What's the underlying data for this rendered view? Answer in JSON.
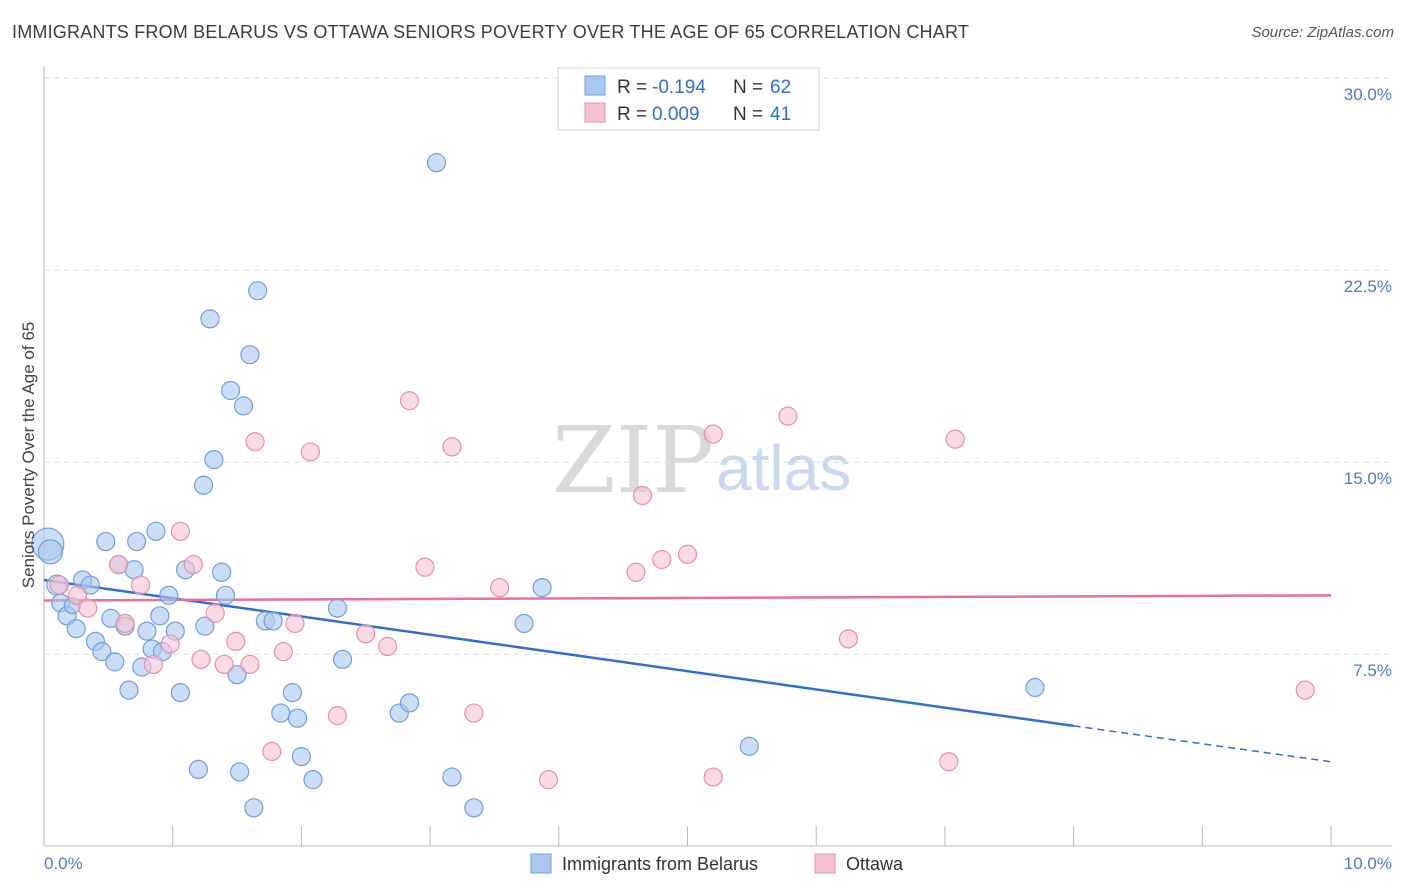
{
  "header": {
    "title": "IMMIGRANTS FROM BELARUS VS OTTAWA SENIORS POVERTY OVER THE AGE OF 65 CORRELATION CHART",
    "source": "Source: ZipAtlas.com"
  },
  "watermark": {
    "zip": "ZIP",
    "atlas": "atlas"
  },
  "colors": {
    "blue_fill": "#aac8ee",
    "blue_stroke": "#6d9fdc",
    "blue_line": "#2e6fd1",
    "pink_fill": "#f6c2d2",
    "pink_stroke": "#e690ac",
    "pink_line": "#e8709a",
    "grid": "#dddddd",
    "tick_text": "#4a7cc9"
  },
  "legend": {
    "rows": [
      {
        "r_label": "R = ",
        "r_value": "-0.194",
        "n_label": "N = ",
        "n_value": "62"
      },
      {
        "r_label": "R = ",
        "r_value": "0.009",
        "n_label": "N = ",
        "n_value": "41"
      }
    ]
  },
  "chart_data": {
    "type": "scatter",
    "title": "IMMIGRANTS FROM BELARUS VS OTTAWA SENIORS POVERTY OVER THE AGE OF 65 CORRELATION CHART",
    "xlabel": "",
    "ylabel": "Seniors Poverty Over the Age of 65",
    "xlim": [
      0,
      10
    ],
    "ylim": [
      0,
      31
    ],
    "x_tick_labels": [
      "0.0%",
      "10.0%"
    ],
    "y_ticks": [
      7.5,
      15.0,
      22.5,
      30.0
    ],
    "y_tick_labels": [
      "7.5%",
      "15.0%",
      "22.5%",
      "30.0%"
    ],
    "series": [
      {
        "name": "Immigrants from Belarus",
        "color": "blue",
        "trend": {
          "x0": 0.0,
          "y0": 10.4,
          "x1": 8.0,
          "y1": 4.7,
          "dash_to_x": 10.0,
          "dash_to_y": 3.3
        },
        "points": [
          [
            0.03,
            11.8,
            16
          ],
          [
            0.05,
            11.5,
            12
          ],
          [
            0.1,
            10.2,
            10
          ],
          [
            0.13,
            9.5,
            9
          ],
          [
            0.18,
            9.0,
            9
          ],
          [
            0.22,
            9.4,
            8
          ],
          [
            0.25,
            8.5,
            9
          ],
          [
            0.3,
            10.4,
            9
          ],
          [
            0.36,
            10.2,
            9
          ],
          [
            0.4,
            8.0,
            9
          ],
          [
            0.45,
            7.6,
            9
          ],
          [
            0.48,
            11.9,
            9
          ],
          [
            0.52,
            8.9,
            9
          ],
          [
            0.55,
            7.2,
            9
          ],
          [
            0.58,
            11.0,
            9
          ],
          [
            0.63,
            8.6,
            9
          ],
          [
            0.66,
            6.1,
            9
          ],
          [
            0.7,
            10.8,
            9
          ],
          [
            0.72,
            11.9,
            9
          ],
          [
            0.76,
            7.0,
            9
          ],
          [
            0.8,
            8.4,
            9
          ],
          [
            0.84,
            7.7,
            9
          ],
          [
            0.87,
            12.3,
            9
          ],
          [
            0.9,
            9.0,
            9
          ],
          [
            0.92,
            7.6,
            9
          ],
          [
            0.97,
            9.8,
            9
          ],
          [
            1.02,
            8.4,
            9
          ],
          [
            1.06,
            6.0,
            9
          ],
          [
            1.1,
            10.8,
            9
          ],
          [
            1.2,
            3.0,
            9
          ],
          [
            1.24,
            14.1,
            9
          ],
          [
            1.25,
            8.6,
            9
          ],
          [
            1.29,
            20.6,
            9
          ],
          [
            1.32,
            15.1,
            9
          ],
          [
            1.38,
            10.7,
            9
          ],
          [
            1.41,
            9.8,
            9
          ],
          [
            1.45,
            17.8,
            9
          ],
          [
            1.5,
            6.7,
            9
          ],
          [
            1.52,
            2.9,
            9
          ],
          [
            1.55,
            17.2,
            9
          ],
          [
            1.6,
            19.2,
            9
          ],
          [
            1.63,
            1.5,
            9
          ],
          [
            1.66,
            21.7,
            9
          ],
          [
            1.72,
            8.8,
            9
          ],
          [
            1.78,
            8.8,
            9
          ],
          [
            1.84,
            5.2,
            9
          ],
          [
            1.93,
            6.0,
            9
          ],
          [
            1.97,
            5.0,
            9
          ],
          [
            2.0,
            3.5,
            9
          ],
          [
            2.09,
            2.6,
            9
          ],
          [
            2.28,
            9.3,
            9
          ],
          [
            2.32,
            7.3,
            9
          ],
          [
            2.76,
            5.2,
            9
          ],
          [
            2.84,
            5.6,
            9
          ],
          [
            3.05,
            26.7,
            9
          ],
          [
            3.17,
            2.7,
            9
          ],
          [
            3.34,
            1.5,
            9
          ],
          [
            3.73,
            8.7,
            9
          ],
          [
            3.87,
            10.1,
            9
          ],
          [
            5.48,
            3.9,
            9
          ],
          [
            7.7,
            6.2,
            9
          ]
        ]
      },
      {
        "name": "Ottawa",
        "color": "pink",
        "trend": {
          "x0": 0.0,
          "y0": 9.6,
          "x1": 10.0,
          "y1": 9.8
        },
        "points": [
          [
            0.12,
            10.2,
            9
          ],
          [
            0.26,
            9.8,
            9
          ],
          [
            0.34,
            9.3,
            9
          ],
          [
            0.58,
            11.0,
            9
          ],
          [
            0.63,
            8.7,
            9
          ],
          [
            0.75,
            10.2,
            9
          ],
          [
            0.85,
            7.1,
            9
          ],
          [
            0.98,
            7.9,
            9
          ],
          [
            1.06,
            12.3,
            9
          ],
          [
            1.16,
            11.0,
            9
          ],
          [
            1.22,
            7.3,
            9
          ],
          [
            1.33,
            9.1,
            9
          ],
          [
            1.4,
            7.1,
            9
          ],
          [
            1.49,
            8.0,
            9
          ],
          [
            1.6,
            7.1,
            9
          ],
          [
            1.64,
            15.8,
            9
          ],
          [
            1.77,
            3.7,
            9
          ],
          [
            1.86,
            7.6,
            9
          ],
          [
            1.95,
            8.7,
            9
          ],
          [
            2.07,
            15.4,
            9
          ],
          [
            2.28,
            5.1,
            9
          ],
          [
            2.5,
            8.3,
            9
          ],
          [
            2.67,
            7.8,
            9
          ],
          [
            2.84,
            17.4,
            9
          ],
          [
            2.96,
            10.9,
            9
          ],
          [
            3.17,
            15.6,
            9
          ],
          [
            3.34,
            5.2,
            9
          ],
          [
            3.54,
            10.1,
            9
          ],
          [
            3.92,
            2.6,
            9
          ],
          [
            4.6,
            10.7,
            9
          ],
          [
            4.65,
            13.7,
            9
          ],
          [
            4.8,
            11.2,
            9
          ],
          [
            5.0,
            11.4,
            9
          ],
          [
            5.2,
            16.1,
            9
          ],
          [
            5.2,
            2.7,
            9
          ],
          [
            5.78,
            16.8,
            9
          ],
          [
            6.25,
            8.1,
            9
          ],
          [
            7.03,
            3.3,
            9
          ],
          [
            7.08,
            15.9,
            9
          ],
          [
            9.8,
            6.1,
            9
          ]
        ]
      }
    ]
  }
}
